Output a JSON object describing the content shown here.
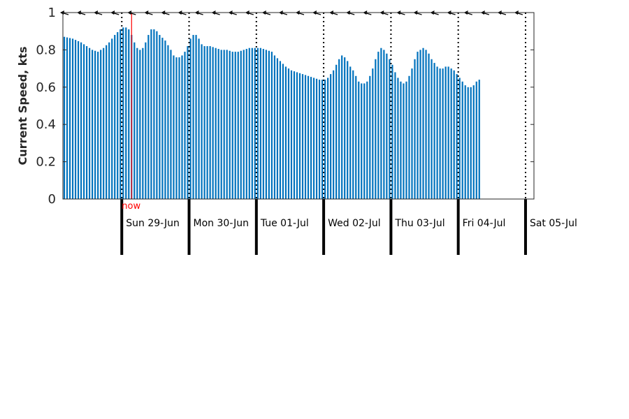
{
  "chart_data": {
    "type": "bar",
    "ylabel": "Current Speed, kts",
    "xlabel": "",
    "ylim": [
      0,
      1
    ],
    "yticks": [
      0,
      0.2,
      0.4,
      0.6,
      0.8,
      1
    ],
    "ytick_labels": [
      "0",
      "0.2",
      "0.4",
      "0.6",
      "0.8",
      "1"
    ],
    "grid": false,
    "bar_color": "#0072BD",
    "time_range_hours": [
      -21,
      147
    ],
    "hours_per_bar": 1,
    "now_marker": {
      "label": "now",
      "hour": 3.5,
      "color": "#ff0000"
    },
    "days": [
      {
        "label": "Sun 29-Jun",
        "hour": 0
      },
      {
        "label": "Mon 30-Jun",
        "hour": 24
      },
      {
        "label": "Tue 01-Jul",
        "hour": 48
      },
      {
        "label": "Wed 02-Jul",
        "hour": 72
      },
      {
        "label": "Thu 03-Jul",
        "hour": 96
      },
      {
        "label": "Fri 04-Jul",
        "hour": 120
      },
      {
        "label": "Sat 05-Jul",
        "hour": 144
      }
    ],
    "anchors": [
      [
        -21,
        0.87
      ],
      [
        -18,
        0.86
      ],
      [
        -15,
        0.84
      ],
      [
        -13,
        0.82
      ],
      [
        -11,
        0.8
      ],
      [
        -9,
        0.79
      ],
      [
        -7,
        0.81
      ],
      [
        -5,
        0.84
      ],
      [
        -3,
        0.88
      ],
      [
        -1,
        0.91
      ],
      [
        0,
        0.92
      ],
      [
        1,
        0.92
      ],
      [
        2,
        0.91
      ],
      [
        3,
        0.88
      ],
      [
        4,
        0.84
      ],
      [
        5,
        0.81
      ],
      [
        6,
        0.8
      ],
      [
        7,
        0.81
      ],
      [
        8,
        0.84
      ],
      [
        9,
        0.88
      ],
      [
        10,
        0.91
      ],
      [
        11,
        0.91
      ],
      [
        12,
        0.9
      ],
      [
        13,
        0.88
      ],
      [
        15,
        0.85
      ],
      [
        17,
        0.8
      ],
      [
        18,
        0.77
      ],
      [
        19,
        0.76
      ],
      [
        20,
        0.76
      ],
      [
        21,
        0.77
      ],
      [
        22,
        0.79
      ],
      [
        23,
        0.82
      ],
      [
        24,
        0.86
      ],
      [
        25,
        0.88
      ],
      [
        26,
        0.88
      ],
      [
        27,
        0.86
      ],
      [
        28,
        0.83
      ],
      [
        29,
        0.82
      ],
      [
        31,
        0.82
      ],
      [
        33,
        0.81
      ],
      [
        35,
        0.8
      ],
      [
        37,
        0.8
      ],
      [
        39,
        0.79
      ],
      [
        41,
        0.79
      ],
      [
        43,
        0.8
      ],
      [
        45,
        0.81
      ],
      [
        47,
        0.81
      ],
      [
        49,
        0.81
      ],
      [
        51,
        0.8
      ],
      [
        53,
        0.79
      ],
      [
        54,
        0.77
      ],
      [
        56,
        0.74
      ],
      [
        58,
        0.71
      ],
      [
        60,
        0.69
      ],
      [
        62,
        0.68
      ],
      [
        64,
        0.67
      ],
      [
        66,
        0.66
      ],
      [
        68,
        0.65
      ],
      [
        70,
        0.64
      ],
      [
        72,
        0.64
      ],
      [
        73,
        0.65
      ],
      [
        74,
        0.67
      ],
      [
        75,
        0.69
      ],
      [
        76,
        0.72
      ],
      [
        77,
        0.75
      ],
      [
        78,
        0.77
      ],
      [
        79,
        0.76
      ],
      [
        80,
        0.74
      ],
      [
        81,
        0.71
      ],
      [
        82,
        0.69
      ],
      [
        83,
        0.66
      ],
      [
        84,
        0.63
      ],
      [
        85,
        0.62
      ],
      [
        86,
        0.62
      ],
      [
        87,
        0.63
      ],
      [
        88,
        0.66
      ],
      [
        89,
        0.7
      ],
      [
        90,
        0.75
      ],
      [
        91,
        0.79
      ],
      [
        92,
        0.81
      ],
      [
        93,
        0.8
      ],
      [
        94,
        0.78
      ],
      [
        95,
        0.75
      ],
      [
        96,
        0.72
      ],
      [
        97,
        0.68
      ],
      [
        98,
        0.65
      ],
      [
        99,
        0.63
      ],
      [
        100,
        0.62
      ],
      [
        101,
        0.63
      ],
      [
        102,
        0.66
      ],
      [
        103,
        0.7
      ],
      [
        104,
        0.75
      ],
      [
        105,
        0.79
      ],
      [
        106,
        0.8
      ],
      [
        107,
        0.81
      ],
      [
        108,
        0.8
      ],
      [
        109,
        0.78
      ],
      [
        110,
        0.75
      ],
      [
        111,
        0.73
      ],
      [
        112,
        0.71
      ],
      [
        113,
        0.7
      ],
      [
        114,
        0.7
      ],
      [
        115,
        0.71
      ],
      [
        116,
        0.71
      ],
      [
        117,
        0.7
      ],
      [
        118,
        0.69
      ],
      [
        119,
        0.67
      ],
      [
        120,
        0.65
      ],
      [
        121,
        0.63
      ],
      [
        122,
        0.61
      ],
      [
        123,
        0.6
      ],
      [
        124,
        0.6
      ],
      [
        125,
        0.61
      ],
      [
        126,
        0.63
      ],
      [
        127,
        0.64
      ]
    ]
  }
}
